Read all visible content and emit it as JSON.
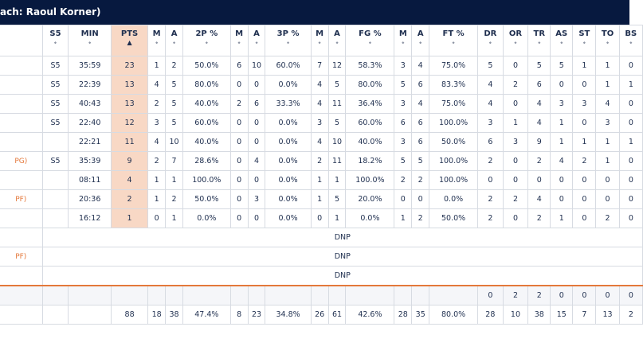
{
  "header": {
    "title": "ach: Raoul Korner)"
  },
  "columns": [
    "S5",
    "MIN",
    "PTS",
    "M",
    "A",
    "2P %",
    "M",
    "A",
    "3P %",
    "M",
    "A",
    "FG %",
    "M",
    "A",
    "FT %",
    "DR",
    "OR",
    "TR",
    "AS",
    "ST",
    "TO",
    "BS"
  ],
  "sort_icons": {
    "neutral": "⬩",
    "active": "▲"
  },
  "players": [
    {
      "name": "",
      "row": [
        "S5",
        "35:59",
        "23",
        "1",
        "2",
        "50.0%",
        "6",
        "10",
        "60.0%",
        "7",
        "12",
        "58.3%",
        "3",
        "4",
        "75.0%",
        "5",
        "0",
        "5",
        "5",
        "1",
        "1",
        "0"
      ]
    },
    {
      "name": "",
      "row": [
        "S5",
        "22:39",
        "13",
        "4",
        "5",
        "80.0%",
        "0",
        "0",
        "0.0%",
        "4",
        "5",
        "80.0%",
        "5",
        "6",
        "83.3%",
        "4",
        "2",
        "6",
        "0",
        "0",
        "1",
        "1"
      ]
    },
    {
      "name": "",
      "row": [
        "S5",
        "40:43",
        "13",
        "2",
        "5",
        "40.0%",
        "2",
        "6",
        "33.3%",
        "4",
        "11",
        "36.4%",
        "3",
        "4",
        "75.0%",
        "4",
        "0",
        "4",
        "3",
        "3",
        "4",
        "0"
      ]
    },
    {
      "name": "",
      "row": [
        "S5",
        "22:40",
        "12",
        "3",
        "5",
        "60.0%",
        "0",
        "0",
        "0.0%",
        "3",
        "5",
        "60.0%",
        "6",
        "6",
        "100.0%",
        "3",
        "1",
        "4",
        "1",
        "0",
        "3",
        "0"
      ]
    },
    {
      "name": "",
      "row": [
        "",
        "22:21",
        "11",
        "4",
        "10",
        "40.0%",
        "0",
        "0",
        "0.0%",
        "4",
        "10",
        "40.0%",
        "3",
        "6",
        "50.0%",
        "6",
        "3",
        "9",
        "1",
        "1",
        "1",
        "1"
      ]
    },
    {
      "name": "PG)",
      "row": [
        "S5",
        "35:39",
        "9",
        "2",
        "7",
        "28.6%",
        "0",
        "4",
        "0.0%",
        "2",
        "11",
        "18.2%",
        "5",
        "5",
        "100.0%",
        "2",
        "0",
        "2",
        "4",
        "2",
        "1",
        "0"
      ]
    },
    {
      "name": "",
      "row": [
        "",
        "08:11",
        "4",
        "1",
        "1",
        "100.0%",
        "0",
        "0",
        "0.0%",
        "1",
        "1",
        "100.0%",
        "2",
        "2",
        "100.0%",
        "0",
        "0",
        "0",
        "0",
        "0",
        "0",
        "0"
      ]
    },
    {
      "name": "PF)",
      "row": [
        "",
        "20:36",
        "2",
        "1",
        "2",
        "50.0%",
        "0",
        "3",
        "0.0%",
        "1",
        "5",
        "20.0%",
        "0",
        "0",
        "0.0%",
        "2",
        "2",
        "4",
        "0",
        "0",
        "0",
        "0"
      ]
    },
    {
      "name": "",
      "row": [
        "",
        "16:12",
        "1",
        "0",
        "1",
        "0.0%",
        "0",
        "0",
        "0.0%",
        "0",
        "1",
        "0.0%",
        "1",
        "2",
        "50.0%",
        "2",
        "0",
        "2",
        "1",
        "0",
        "2",
        "0"
      ]
    }
  ],
  "dnp_rows": [
    {
      "name": "",
      "label": "DNP"
    },
    {
      "name": "PF)",
      "label": "DNP"
    },
    {
      "name": "",
      "label": "DNP"
    }
  ],
  "team_row": [
    "",
    "",
    "",
    "",
    "",
    "",
    "",
    "",
    "",
    "",
    "",
    "",
    "",
    "",
    "",
    "0",
    "2",
    "2",
    "0",
    "0",
    "0",
    "0"
  ],
  "totals_row": [
    "",
    "",
    "88",
    "18",
    "38",
    "47.4%",
    "8",
    "23",
    "34.8%",
    "26",
    "61",
    "42.6%",
    "28",
    "35",
    "80.0%",
    "28",
    "10",
    "38",
    "15",
    "7",
    "13",
    "2"
  ],
  "colors": {
    "header_bg": "#07193f",
    "accent": "#e4783b",
    "pts_bg": "#f8d8c5",
    "text": "#1f2f4f"
  }
}
